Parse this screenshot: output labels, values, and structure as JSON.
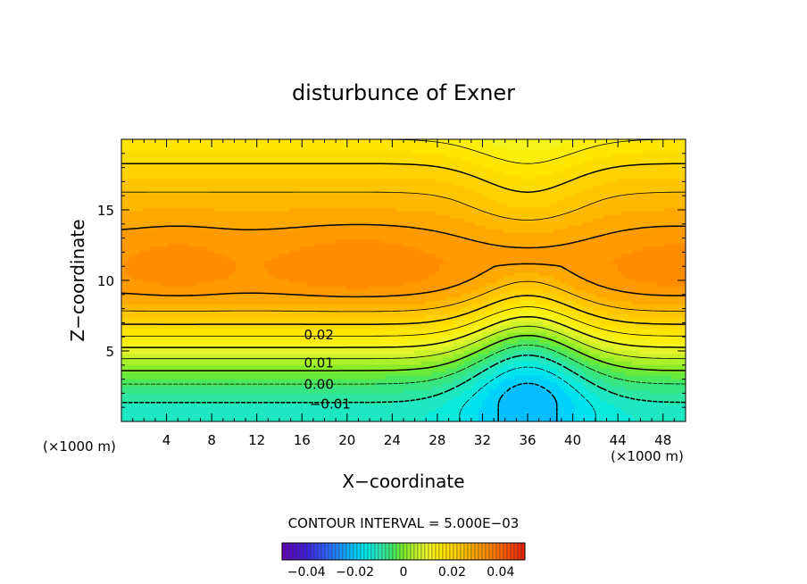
{
  "chart_data": {
    "type": "heatmap",
    "title": "disturbunce of Exner",
    "xlabel": "X−coordinate",
    "ylabel": "Z−coordinate",
    "x_unit_label": "(×1000 m)",
    "y_unit_label": "(×1000 m)",
    "xlim": [
      0,
      50
    ],
    "ylim": [
      0,
      20
    ],
    "x_ticks": [
      4,
      8,
      12,
      16,
      20,
      24,
      28,
      32,
      36,
      40,
      44,
      48
    ],
    "y_ticks": [
      5,
      10,
      15
    ],
    "contour_interval_label": "CONTOUR INTERVAL = 5.000E−03",
    "contour_labels": [
      {
        "text": "0.02",
        "x": 17.5,
        "z": 6.2
      },
      {
        "text": "0.01",
        "x": 17.5,
        "z": 4.2
      },
      {
        "text": "0.00",
        "x": 17.5,
        "z": 2.7
      },
      {
        "text": "−0.01",
        "x": 18.5,
        "z": 1.3
      }
    ],
    "colorbar": {
      "range": [
        -0.05,
        0.05
      ],
      "ticks": [
        -0.04,
        -0.02,
        0,
        0.02,
        0.04
      ],
      "tick_labels": [
        "−0.04",
        "−0.02",
        "0",
        "0.02",
        "0.04"
      ]
    },
    "field_values": {
      "upper_max": 0.035,
      "top_min": 0.018,
      "surface_min_at_x36": -0.022,
      "surface_at_x10": -0.012,
      "ridge_x": 36
    }
  }
}
